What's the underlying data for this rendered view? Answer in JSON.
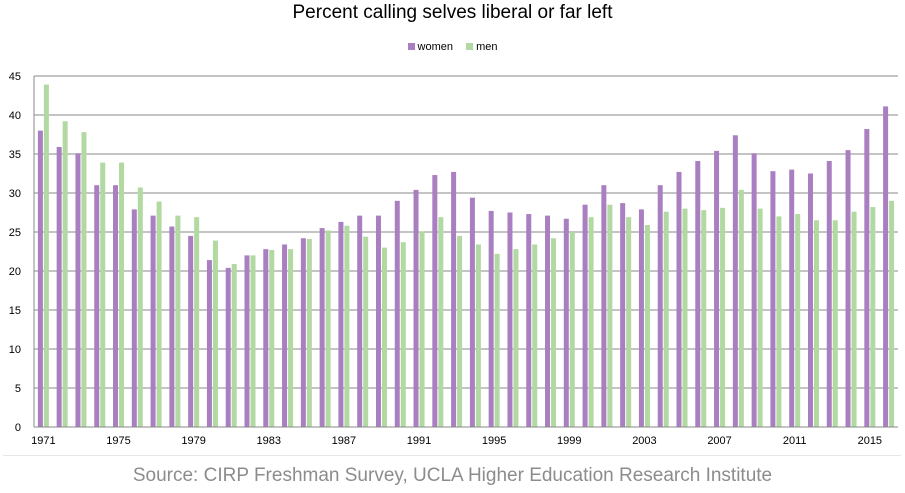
{
  "chart_data": {
    "type": "bar",
    "title": "Percent calling selves liberal or far left",
    "source": "Source: CIRP Freshman Survey, UCLA Higher Education Research Institute",
    "ylim": [
      0,
      45
    ],
    "yticks": [
      "0",
      "5",
      "10",
      "15",
      "20",
      "25",
      "30",
      "35",
      "40",
      "45"
    ],
    "grid": true,
    "legend_position": "top-center",
    "xlim": [
      1971,
      2016
    ],
    "x_tick_labels": [
      "1971",
      "1975",
      "1979",
      "1983",
      "1987",
      "1991",
      "1995",
      "1999",
      "2003",
      "2007",
      "2011",
      "2015"
    ],
    "x": [
      1971,
      1972,
      1973,
      1974,
      1975,
      1976,
      1977,
      1978,
      1979,
      1980,
      1981,
      1982,
      1983,
      1984,
      1985,
      1986,
      1987,
      1988,
      1989,
      1990,
      1991,
      1992,
      1993,
      1994,
      1995,
      1996,
      1997,
      1998,
      1999,
      2000,
      2001,
      2002,
      2003,
      2004,
      2005,
      2006,
      2007,
      2008,
      2009,
      2010,
      2011,
      2012,
      2013,
      2014,
      2015,
      2016
    ],
    "series": [
      {
        "name": "women",
        "color": "#a97fc1",
        "values": [
          38.0,
          35.9,
          35.1,
          31.0,
          31.0,
          27.9,
          27.1,
          25.7,
          24.5,
          21.4,
          20.4,
          22.0,
          22.8,
          23.4,
          24.2,
          25.5,
          26.3,
          27.1,
          27.1,
          29.0,
          30.4,
          32.3,
          32.7,
          29.4,
          27.7,
          27.5,
          27.3,
          27.1,
          26.7,
          28.5,
          31.0,
          28.7,
          27.9,
          31.0,
          32.7,
          34.1,
          35.4,
          37.4,
          35.1,
          32.8,
          33.0,
          32.5,
          34.1,
          35.5,
          38.2,
          41.1
        ]
      },
      {
        "name": "men",
        "color": "#b2d9a1",
        "values": [
          43.9,
          39.2,
          37.8,
          33.9,
          33.9,
          30.7,
          28.9,
          27.1,
          26.9,
          23.9,
          20.9,
          22.0,
          22.7,
          22.8,
          24.1,
          25.2,
          25.8,
          24.4,
          23.0,
          23.7,
          25.1,
          26.9,
          24.5,
          23.4,
          22.2,
          22.8,
          23.4,
          24.2,
          25.0,
          26.9,
          28.5,
          26.9,
          25.9,
          27.6,
          28.0,
          27.8,
          28.1,
          30.4,
          28.0,
          27.0,
          27.3,
          26.5,
          26.5,
          27.6,
          28.2,
          29.0
        ]
      }
    ]
  }
}
